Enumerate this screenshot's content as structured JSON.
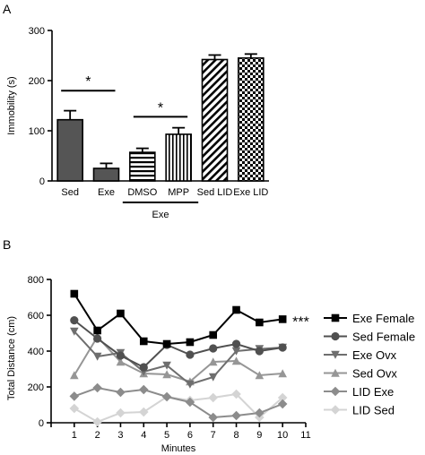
{
  "colors": {
    "axis": "#000000",
    "bar_dark": "#555555",
    "bar_white": "#ffffff",
    "exe_female": "#000000",
    "sed_female": "#505050",
    "exe_ovx": "#6e6e6e",
    "sed_ovx": "#969696",
    "lid_exe": "#8c8c8c",
    "lid_sed": "#d4d4d4"
  },
  "chart_data": [
    {
      "panel": "A",
      "type": "bar",
      "ylabel": "Immobility (s)",
      "ylim": [
        0,
        300
      ],
      "yticks": [
        0,
        100,
        200,
        300
      ],
      "categories": [
        "Sed",
        "Exe",
        "DMSO",
        "MPP",
        "Sed LID",
        "Exe LID"
      ],
      "bars": [
        {
          "label": "Sed",
          "value": 122,
          "error": 18,
          "fill": "solid-dark"
        },
        {
          "label": "Exe",
          "value": 25,
          "error": 10,
          "fill": "solid-dark"
        },
        {
          "label": "DMSO",
          "value": 57,
          "error": 8,
          "fill": "horizontal-stripes"
        },
        {
          "label": "MPP",
          "value": 93,
          "error": 13,
          "fill": "vertical-stripes"
        },
        {
          "label": "Sed LID",
          "value": 242,
          "error": 9,
          "fill": "diagonal-stripes"
        },
        {
          "label": "Exe LID",
          "value": 245,
          "error": 8,
          "fill": "checker"
        }
      ],
      "group_label": "Exe",
      "group_members": [
        "DMSO",
        "MPP"
      ],
      "significance": [
        {
          "between": [
            "Sed",
            "Exe"
          ],
          "label": "*",
          "level": 180
        },
        {
          "between": [
            "DMSO",
            "MPP"
          ],
          "label": "*",
          "level": 128
        }
      ]
    },
    {
      "panel": "B",
      "type": "line",
      "xlabel": "Minutes",
      "ylabel": "Total Distance (cm)",
      "xlim": [
        0,
        11
      ],
      "ylim": [
        0,
        800
      ],
      "xticks": [
        0,
        1,
        2,
        3,
        4,
        5,
        6,
        7,
        8,
        9,
        10,
        11
      ],
      "yticks": [
        0,
        200,
        400,
        600,
        800
      ],
      "x": [
        1,
        2,
        3,
        4,
        5,
        6,
        7,
        8,
        9,
        10
      ],
      "legend_position": "right",
      "annotation": {
        "text": "***",
        "near_series": "Exe Female"
      },
      "series": [
        {
          "name": "Exe Female",
          "marker": "square",
          "color_key": "exe_female",
          "values": [
            720,
            515,
            610,
            455,
            440,
            450,
            490,
            630,
            560,
            578
          ]
        },
        {
          "name": "Sed Female",
          "marker": "circle",
          "color_key": "sed_female",
          "values": [
            572,
            470,
            375,
            310,
            435,
            380,
            415,
            440,
            400,
            420
          ]
        },
        {
          "name": "Exe Ovx",
          "marker": "triangle-down",
          "color_key": "exe_ovx",
          "values": [
            510,
            370,
            390,
            285,
            320,
            215,
            255,
            400,
            412,
            420
          ]
        },
        {
          "name": "Sed Ovx",
          "marker": "triangle-up",
          "color_key": "sed_ovx",
          "values": [
            265,
            480,
            340,
            275,
            270,
            230,
            340,
            345,
            265,
            275
          ]
        },
        {
          "name": "LID Exe",
          "marker": "diamond",
          "color_key": "lid_exe",
          "values": [
            148,
            195,
            170,
            185,
            145,
            115,
            30,
            40,
            55,
            105
          ]
        },
        {
          "name": "LID Sed",
          "marker": "diamond",
          "color_key": "lid_sed",
          "values": [
            80,
            5,
            55,
            60,
            145,
            125,
            140,
            160,
            30,
            140
          ]
        }
      ]
    }
  ]
}
